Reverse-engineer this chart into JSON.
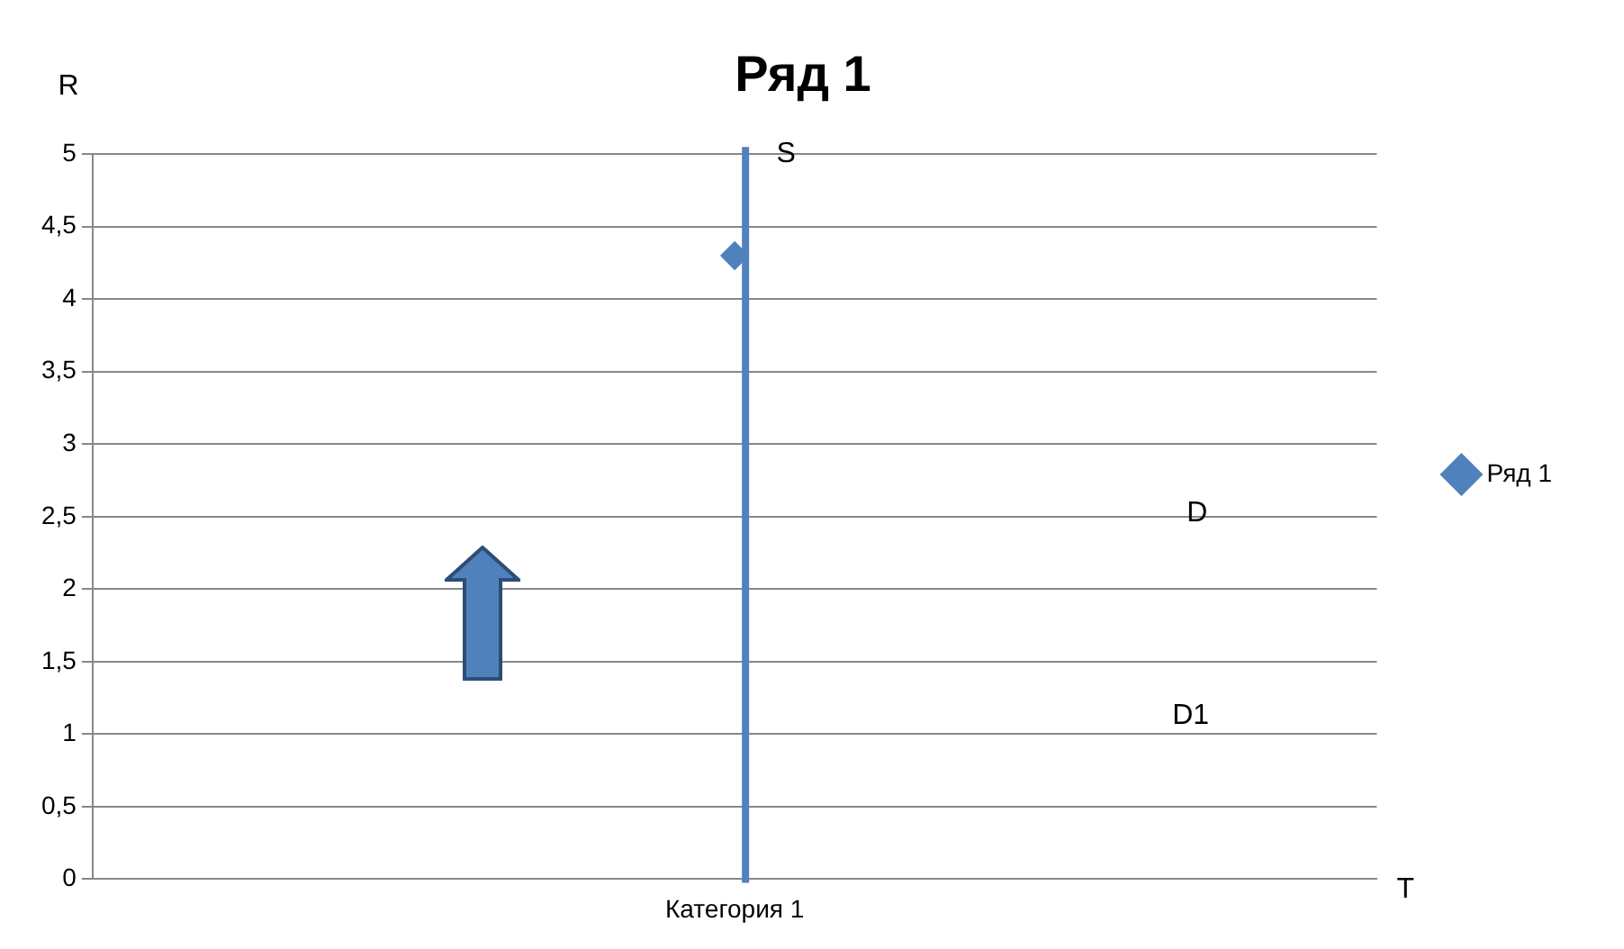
{
  "chart_data": {
    "type": "line",
    "title": "Ряд 1",
    "xlabel": "T",
    "ylabel": "R",
    "categories": [
      "Категория 1"
    ],
    "series": [
      {
        "name": "Ряд 1",
        "color": "#4f81bd",
        "values": [
          4.3
        ]
      }
    ],
    "ylim": [
      0,
      5
    ],
    "yticks": [
      0,
      {
        "value": 0.5,
        "label": "0,5"
      },
      1,
      {
        "value": 1.5,
        "label": "1,5"
      },
      2,
      {
        "value": 2.5,
        "label": "2,5"
      },
      3,
      {
        "value": 3.5,
        "label": "3,5"
      },
      4,
      {
        "value": 4.5,
        "label": "4,5"
      },
      5
    ],
    "ref_lines": [
      {
        "axis": "x",
        "value": "Категория 1",
        "color": "#4f81bd"
      }
    ],
    "annotations": [
      "S",
      "D",
      "D1"
    ],
    "grid": "y",
    "legend": "right",
    "marker": "diamond"
  }
}
